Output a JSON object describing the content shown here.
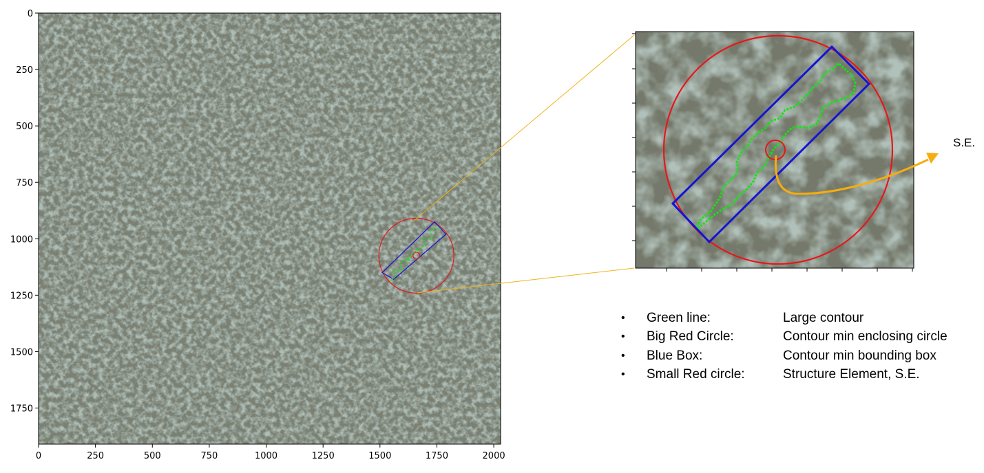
{
  "main_plot": {
    "x_ticks": [
      0,
      250,
      500,
      750,
      1000,
      1250,
      1500,
      1750,
      2000
    ],
    "y_ticks": [
      0,
      250,
      500,
      750,
      1000,
      1250,
      1500,
      1750
    ],
    "xlim": [
      0,
      2030
    ],
    "ylim": [
      0,
      1910
    ],
    "image_description_terms": [
      "aerial-forest-canopy"
    ],
    "contour": {
      "center": [
        1660,
        1075
      ],
      "enclosing_circle_radius": 165,
      "box_corners": [
        [
          1560,
          1180
        ],
        [
          1510,
          1150
        ],
        [
          1740,
          925
        ],
        [
          1790,
          980
        ]
      ],
      "se_radius": 15
    },
    "colors": {
      "canopy_light": "#a9bcb4",
      "canopy_dark": "#5c5a4a",
      "contour_green": "#11e611",
      "enclosing_red": "#e8161b",
      "box_blue": "#1414d6"
    }
  },
  "zoom_colors": {
    "connector": "#f0b318",
    "arrow": "#f5ad10"
  },
  "annotation": {
    "label": "S.E."
  },
  "legend": [
    {
      "name": "Green line:",
      "desc": "Large contour"
    },
    {
      "name": "Big Red Circle:",
      "desc": "Contour min enclosing circle"
    },
    {
      "name": "Blue Box:",
      "desc": "Contour min bounding box"
    },
    {
      "name": "Small Red circle:",
      "desc": "Structure Element, S.E."
    }
  ]
}
